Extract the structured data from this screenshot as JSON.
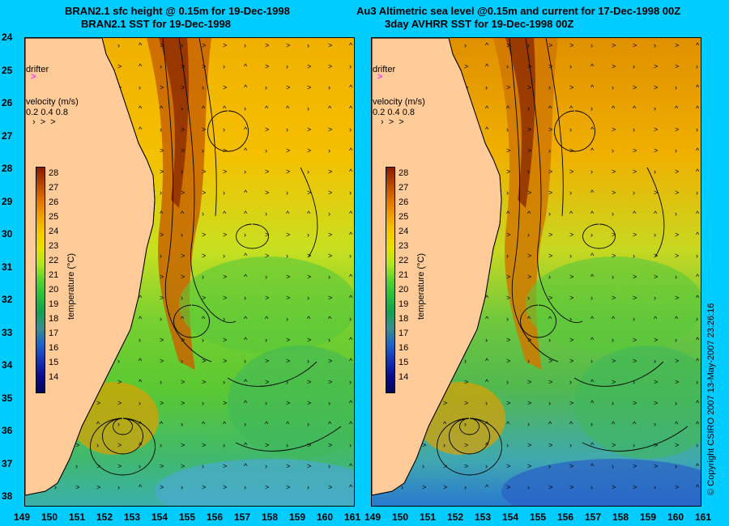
{
  "left_panel": {
    "title_line1": "BRAN2.1 sfc height @ 0.15m for 19-Dec-1998",
    "title_line2": "BRAN2.1 SST for 19-Dec-1998"
  },
  "right_panel": {
    "title_line1": "Au3 Altimetric sea level  @0.15m and current for 17-Dec-1998 00Z",
    "title_line2": "3day AVHRR SST for 19-Dec-1998 00Z"
  },
  "drifter_label": "drifter",
  "velocity_label": "velocity  (m/s)",
  "velocity_scale": "0.2 0.4 0.8",
  "colorbar": {
    "title": "temperature (°C)",
    "ticks": [
      "28",
      "27",
      "26",
      "25",
      "24",
      "23",
      "22",
      "21",
      "20",
      "19",
      "18",
      "17",
      "16",
      "15",
      "14"
    ]
  },
  "y_axis_labels": [
    "24",
    "25",
    "26",
    "27",
    "28",
    "29",
    "30",
    "31",
    "32",
    "33",
    "34",
    "35",
    "36",
    "37",
    "38"
  ],
  "x_axis_labels_left": [
    "149",
    "150",
    "151",
    "152",
    "153",
    "154",
    "155",
    "156",
    "157",
    "158",
    "159",
    "160",
    "161"
  ],
  "x_axis_labels_right": [
    "149",
    "150",
    "151",
    "152",
    "153",
    "154",
    "155",
    "156",
    "157",
    "158",
    "159",
    "160",
    "161"
  ],
  "copyright": "© Copyright CSIRO 2007   13-May-2007 23:26:16",
  "colors": {
    "background": "#00ccff",
    "land": "#ffcc99",
    "drifter": "#ff33ff"
  }
}
